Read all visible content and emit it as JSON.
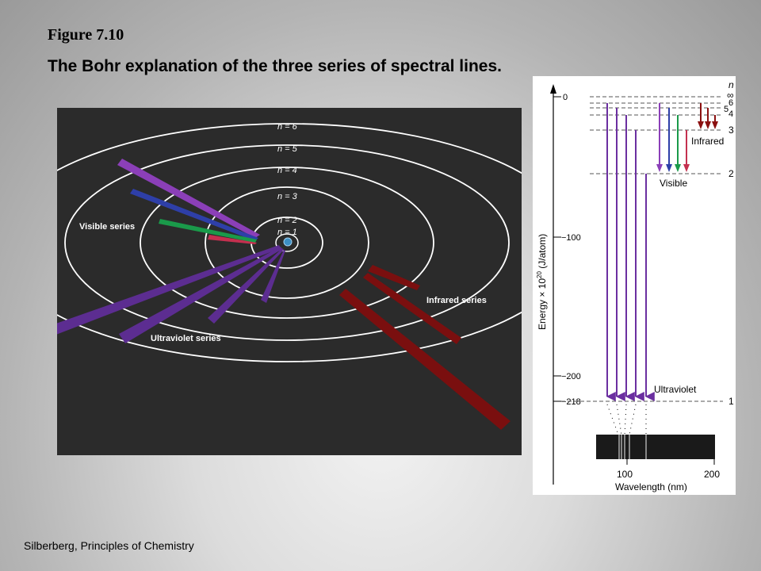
{
  "figure_label": "Figure 7.10",
  "figure_title": "The Bohr explanation of the three series of spectral lines.",
  "credit": "Silberberg, Principles of Chemistry",
  "orbit_diagram": {
    "orbit_labels": [
      "n = 6",
      "n = 5",
      "n = 4",
      "n = 3",
      "n = 2",
      "n = 1"
    ],
    "series_labels": {
      "visible": "Visible series",
      "ultraviolet": "Ultraviolet series",
      "infrared": "Infrared series"
    },
    "colors": {
      "background": "#2b2b2b",
      "orbit": "#ffffff",
      "ultraviolet": "#5c2d91",
      "visible_violet": "#8b3fb8",
      "visible_blue": "#2e3fa8",
      "visible_green": "#1a9a4a",
      "visible_red": "#c4304f",
      "infrared": "#7a0f0f"
    }
  },
  "energy_diagram": {
    "n_header": "n",
    "level_labels": [
      "∞",
      "6",
      "5",
      "4",
      "3",
      "2",
      "1"
    ],
    "axis_ticks": [
      "0",
      "−100",
      "−200",
      "−218"
    ],
    "axis_title_prefix": "Energy × 10",
    "axis_title_exponent": "20",
    "axis_title_suffix": " (J/atom)",
    "series_labels": {
      "infrared": "Infrared",
      "visible": "Visible",
      "ultraviolet": "Ultraviolet"
    },
    "wavelength_ticks": [
      "100",
      "200"
    ],
    "wavelength_title": "Wavelength (nm)"
  }
}
